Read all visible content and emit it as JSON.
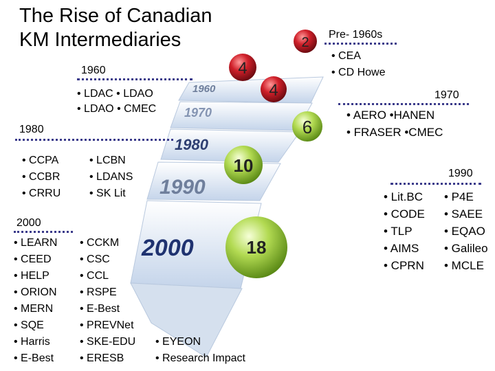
{
  "title": {
    "line1": "The Rise of Canadian",
    "line2": "KM Intermediaries"
  },
  "stairs": [
    "1960",
    "1970",
    "1980",
    "1990",
    "2000"
  ],
  "balls": [
    {
      "count": "2",
      "color": "#c8202a"
    },
    {
      "count": "4",
      "color": "#c8202a"
    },
    {
      "count": "4",
      "color": "#c8202a"
    },
    {
      "count": "6",
      "color": "#a8d048"
    },
    {
      "count": "10",
      "color": "#a8d048"
    },
    {
      "count": "18",
      "color": "#a8d048"
    }
  ],
  "pre1960": {
    "heading": "Pre- 1960s",
    "items": [
      "• CEA",
      "• CD Howe"
    ]
  },
  "g1960": {
    "heading": "1960",
    "row1": "• LDAC  • LDAO",
    "row2": "• LDAO  • CMEC"
  },
  "g1970": {
    "heading": "1970",
    "row1": "• AERO          •HANEN",
    "row2": "• FRASER  •CMEC"
  },
  "g1980": {
    "heading": "1980",
    "col1": [
      "• CCPA",
      "• CCBR",
      "• CRRU"
    ],
    "col2": [
      "• LCBN",
      "• LDANS",
      "• SK Lit"
    ]
  },
  "g1990": {
    "heading": "1990",
    "col1": [
      "• Lit.BC",
      "• CODE",
      "• TLP",
      "• AIMS",
      "• CPRN"
    ],
    "col2": [
      "• P4E",
      "• SAEE",
      "• EQAO",
      "• Galileo",
      "• MCLE"
    ]
  },
  "g2000": {
    "heading": "2000",
    "col1": [
      "• LEARN",
      "• CEED",
      "• HELP",
      "• ORION",
      "• MERN",
      "• SQE",
      "• Harris",
      "• E-Best"
    ],
    "col2": [
      "• CCKM",
      "• CSC",
      "• CCL",
      "• RSPE",
      "• E-Best",
      "• PREVNet",
      "• SKE-EDU",
      "• ERESB"
    ],
    "col3": [
      "• EYEON",
      "• Research Impact"
    ]
  }
}
